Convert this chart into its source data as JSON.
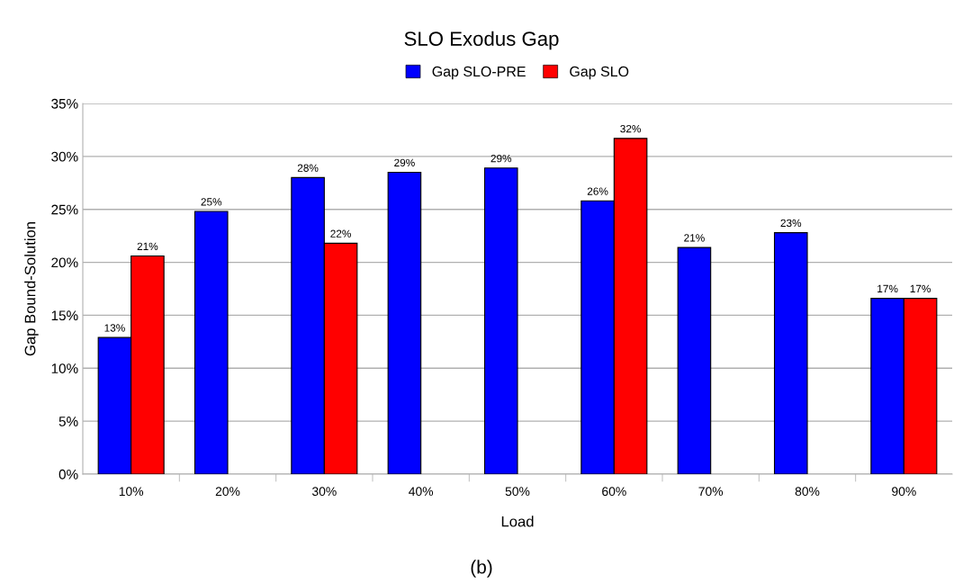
{
  "chart_data": {
    "type": "bar",
    "title": "SLO Exodus Gap",
    "xlabel": "Load",
    "ylabel": "Gap Bound-Solution",
    "categories": [
      "10%",
      "20%",
      "30%",
      "40%",
      "50%",
      "60%",
      "70%",
      "80%",
      "90%"
    ],
    "series": [
      {
        "name": "Gap SLO-PRE",
        "color": "#0000ff",
        "values": [
          12.9,
          24.8,
          28.0,
          28.5,
          28.9,
          25.8,
          21.4,
          22.8,
          16.6
        ],
        "value_labels": [
          "13%",
          "25%",
          "28%",
          "29%",
          "29%",
          "26%",
          "21%",
          "23%",
          "17%"
        ]
      },
      {
        "name": "Gap SLO",
        "color": "#ff0000",
        "values": [
          20.6,
          null,
          21.8,
          null,
          null,
          31.7,
          null,
          null,
          16.6
        ],
        "value_labels": [
          "21%",
          null,
          "22%",
          null,
          null,
          "32%",
          null,
          null,
          "17%"
        ]
      }
    ],
    "ylim": [
      0,
      35
    ],
    "yticks": [
      {
        "value": 0,
        "label": "0%"
      },
      {
        "value": 5,
        "label": "5%"
      },
      {
        "value": 10,
        "label": "10%"
      },
      {
        "value": 15,
        "label": "15%"
      },
      {
        "value": 20,
        "label": "20%"
      },
      {
        "value": 25,
        "label": "25%"
      },
      {
        "value": 30,
        "label": "30%"
      },
      {
        "value": 35,
        "label": "35%"
      }
    ],
    "grid": "y",
    "legend": "top",
    "annotations": [
      "(b)"
    ]
  }
}
